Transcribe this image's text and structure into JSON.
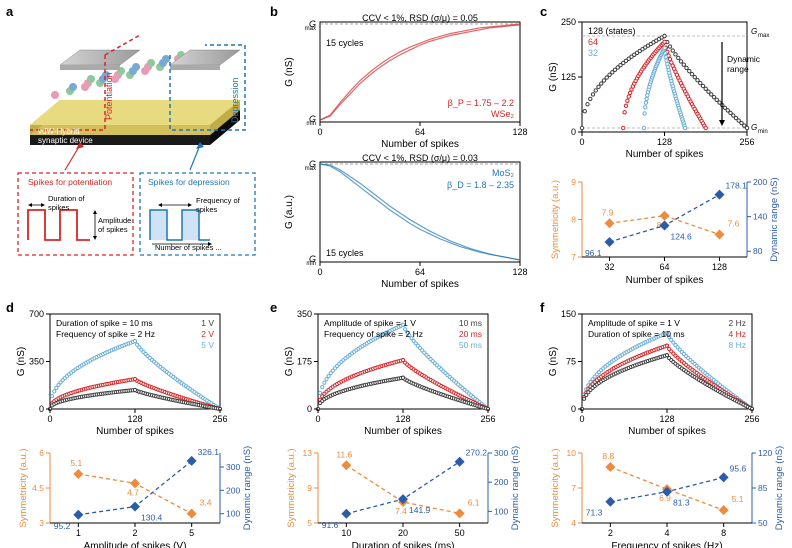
{
  "labels": {
    "a": "a",
    "b": "b",
    "c": "c",
    "d": "d",
    "e": "e",
    "f": "f"
  },
  "panel_a": {
    "device_label": "vdW-Hybrid\nsynaptic device",
    "potentiation_label": "Potentiation",
    "depression_label": "Depression",
    "pot_spike_title": "Spikes for potentiation",
    "dep_spike_title": "Spikes for depression",
    "pot_annotations": [
      "Duration of\nspikes",
      "Amplitude\nof spikes"
    ],
    "dep_annotations": [
      "Frequency of\nspikes",
      "Number of spikes ..."
    ],
    "colors": {
      "pot_red": "#d62728",
      "dep_blue": "#1f77b4",
      "device_yellow": "#d4c05a",
      "device_black": "#1a1a1a",
      "atom_pink": "#e89bb5",
      "atom_green": "#8fc99a",
      "atom_blue": "#7aa8d4",
      "electrode": "#b8b8b8"
    }
  },
  "panel_b": {
    "top": {
      "type": "line",
      "annotations": [
        "CCV < 1%, RSD (σ/μ) = 0.05",
        "15 cycles",
        "β_P = 1.75 – 2.2",
        "WSe₂"
      ],
      "color": "#d62728",
      "xlim": [
        0,
        128
      ],
      "xticks": [
        0,
        64,
        128
      ],
      "yticks_labels": [
        "G_min",
        "G_max"
      ],
      "xlabel": "Number of spikes",
      "ylabel": "G (nS)",
      "curves": [
        [
          0,
          0.05,
          0.18,
          0.3,
          0.41,
          0.5,
          0.58,
          0.65,
          0.71,
          0.76,
          0.8,
          0.84,
          0.87,
          0.9,
          0.92,
          0.94,
          0.96,
          0.97,
          0.98,
          0.99,
          1.0
        ],
        [
          0,
          0.04,
          0.16,
          0.27,
          0.38,
          0.47,
          0.55,
          0.62,
          0.68,
          0.73,
          0.78,
          0.82,
          0.85,
          0.88,
          0.9,
          0.92,
          0.94,
          0.96,
          0.97,
          0.98,
          0.99
        ]
      ]
    },
    "bottom": {
      "type": "line",
      "annotations": [
        "CCV < 1%, RSD (σ/μ) = 0.03",
        "15 cycles",
        "MoS₂",
        "β_D = 1.8 – 2.35"
      ],
      "color": "#1f77b4",
      "xlim": [
        0,
        128
      ],
      "xticks": [
        0,
        64,
        128
      ],
      "yticks_labels": [
        "G_min",
        "G_max"
      ],
      "xlabel": "Number of spikes",
      "ylabel": "G (a.u.)",
      "curves": [
        [
          1.0,
          0.98,
          0.92,
          0.84,
          0.76,
          0.68,
          0.6,
          0.52,
          0.45,
          0.38,
          0.32,
          0.27,
          0.22,
          0.18,
          0.14,
          0.11,
          0.08,
          0.06,
          0.04,
          0.02,
          0.0
        ],
        [
          1.0,
          0.99,
          0.94,
          0.87,
          0.8,
          0.72,
          0.64,
          0.56,
          0.49,
          0.42,
          0.36,
          0.3,
          0.25,
          0.2,
          0.16,
          0.12,
          0.09,
          0.06,
          0.04,
          0.02,
          0.0
        ]
      ]
    }
  },
  "panel_c": {
    "top": {
      "type": "scatter",
      "ylabel": "G (nS)",
      "xlabel": "Number of spikes",
      "ylim": [
        0,
        250
      ],
      "yticks": [
        0,
        125,
        250
      ],
      "xlim": [
        0,
        256
      ],
      "xticks": [
        0,
        128,
        256
      ],
      "annotations": [
        "128 (states)",
        "64",
        "32",
        "G_max",
        "Dynamic range",
        "G_min"
      ],
      "series": [
        {
          "color": "#404040",
          "n": 128,
          "label": "128"
        },
        {
          "color": "#d62728",
          "n": 64,
          "label": "64"
        },
        {
          "color": "#6baed6",
          "n": 32,
          "label": "32"
        }
      ]
    },
    "bottom": {
      "type": "dual-axis",
      "xlabel": "Number of spikes",
      "ylabel_left": "Symmetricity (a.u.)",
      "ylabel_right": "Dynamic range (nS)",
      "left_color": "#ed8b3f",
      "right_color": "#2a5caa",
      "xticks": [
        32,
        64,
        128
      ],
      "left_ylim": [
        7,
        9
      ],
      "left_yticks": [
        7,
        8,
        9
      ],
      "right_ylim": [
        70,
        200
      ],
      "right_yticks": [
        80,
        140,
        200
      ],
      "left_values": [
        7.9,
        8.1,
        7.6
      ],
      "right_values": [
        96.1,
        124.6,
        178.1
      ]
    }
  },
  "panel_d": {
    "top": {
      "type": "scatter",
      "ylabel": "G (nS)",
      "xlabel": "Number of spikes",
      "ylim": [
        0,
        700
      ],
      "yticks": [
        0,
        350,
        700
      ],
      "xlim": [
        0,
        256
      ],
      "xticks": [
        0,
        128,
        256
      ],
      "title_lines": [
        "Duration of spike = 10 ms",
        "Frequency of spike = 2 Hz"
      ],
      "legend": [
        "1 V",
        "2 V",
        "5 V"
      ],
      "series": [
        {
          "color": "#6baed6",
          "peak": 500
        },
        {
          "color": "#d62728",
          "peak": 220
        },
        {
          "color": "#404040",
          "peak": 140
        }
      ]
    },
    "bottom": {
      "xlabel": "Amplitude of spikes (V)",
      "ylabel_left": "Symmetricity (a.u.)",
      "ylabel_right": "Dynamic range (nS)",
      "left_color": "#ed8b3f",
      "right_color": "#2a5caa",
      "xticks": [
        1,
        2,
        5
      ],
      "left_ylim": [
        3,
        6
      ],
      "left_yticks": [
        3,
        4.5,
        6
      ],
      "right_ylim": [
        60,
        360
      ],
      "right_yticks": [
        100,
        200,
        300
      ],
      "left_values": [
        5.1,
        4.7,
        3.4
      ],
      "right_values": [
        95.2,
        130.4,
        326.1
      ]
    }
  },
  "panel_e": {
    "top": {
      "type": "scatter",
      "ylabel": "G (nS)",
      "xlabel": "Number of spikes",
      "ylim": [
        0,
        350
      ],
      "yticks": [
        0,
        175,
        350
      ],
      "xlim": [
        0,
        256
      ],
      "xticks": [
        0,
        128,
        256
      ],
      "title_lines": [
        "Amplitude of spike = 1 V",
        "Frequency of spike = 2 Hz"
      ],
      "legend": [
        "10 ms",
        "20 ms",
        "50 ms"
      ],
      "series": [
        {
          "color": "#6baed6",
          "peak": 310
        },
        {
          "color": "#d62728",
          "peak": 180
        },
        {
          "color": "#404040",
          "peak": 115
        }
      ]
    },
    "bottom": {
      "xlabel": "Duration of spikes (ms)",
      "ylabel_left": "Symmetricity (a.u.)",
      "ylabel_right": "Dynamic range (nS)",
      "left_color": "#ed8b3f",
      "right_color": "#2a5caa",
      "xticks": [
        10,
        20,
        50
      ],
      "left_ylim": [
        5,
        13
      ],
      "left_yticks": [
        5,
        9,
        13
      ],
      "right_ylim": [
        60,
        300
      ],
      "right_yticks": [
        100,
        200,
        300
      ],
      "left_values": [
        11.6,
        7.4,
        6.1
      ],
      "right_values": [
        91.6,
        141.9,
        270.2
      ]
    }
  },
  "panel_f": {
    "top": {
      "type": "scatter",
      "ylabel": "G (nS)",
      "xlabel": "Number of spikes",
      "ylim": [
        0,
        150
      ],
      "yticks": [
        0,
        75,
        150
      ],
      "xlim": [
        0,
        256
      ],
      "xticks": [
        0,
        128,
        256
      ],
      "title_lines": [
        "Amplitude of spike = 1 V",
        "Duration of spike = 10 ms"
      ],
      "legend": [
        "2 Hz",
        "4 Hz",
        "8 Hz"
      ],
      "series": [
        {
          "color": "#6baed6",
          "peak": 120
        },
        {
          "color": "#d62728",
          "peak": 100
        },
        {
          "color": "#404040",
          "peak": 85
        }
      ]
    },
    "bottom": {
      "xlabel": "Frequency of spikes (Hz)",
      "ylabel_left": "Symmetricity (a.u.)",
      "ylabel_right": "Dynamic range (nS)",
      "left_color": "#ed8b3f",
      "right_color": "#2a5caa",
      "xticks": [
        2,
        4,
        8
      ],
      "left_ylim": [
        4,
        10
      ],
      "left_yticks": [
        4,
        7,
        10
      ],
      "right_ylim": [
        50,
        120
      ],
      "right_yticks": [
        50,
        85,
        120
      ],
      "left_values": [
        8.8,
        6.9,
        5.1
      ],
      "right_values": [
        71.3,
        81.3,
        95.6
      ]
    }
  }
}
